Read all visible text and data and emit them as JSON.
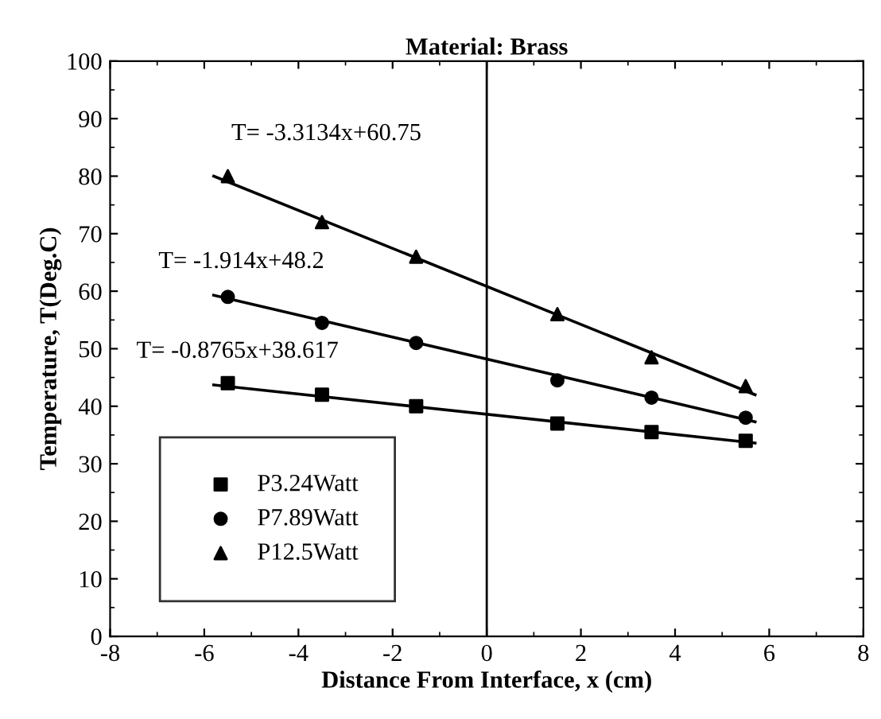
{
  "chart_data": {
    "type": "scatter",
    "title": "Material: Brass",
    "xlabel": "Distance From Interface, x (cm)",
    "ylabel": "Temperature, T(Deg.C)",
    "xlim": [
      -8,
      8
    ],
    "xticks": [
      -8,
      -6,
      -4,
      -2,
      0,
      2,
      4,
      6,
      8
    ],
    "ylim": [
      0,
      100
    ],
    "yticks": [
      0,
      10,
      20,
      30,
      40,
      50,
      60,
      70,
      80,
      90,
      100
    ],
    "grid": false,
    "legend": "bottom left",
    "series": [
      {
        "name": "P3.24Watt",
        "color": "#000000",
        "marker": "square",
        "x": [
          -5.5,
          -3.5,
          -1.5,
          1.5,
          3.5,
          5.5
        ],
        "values": [
          44,
          42,
          40,
          37,
          35.5,
          34
        ]
      },
      {
        "name": "P7.89Watt",
        "color": "#000000",
        "marker": "circle",
        "x": [
          -5.5,
          -3.5,
          -1.5,
          1.5,
          3.5,
          5.5
        ],
        "values": [
          59,
          54.5,
          51,
          44.5,
          41.5,
          38
        ]
      },
      {
        "name": "P12.5Watt",
        "color": "#000000",
        "marker": "triangle",
        "x": [
          -5.5,
          -3.5,
          -1.5,
          1.5,
          3.5,
          5.5
        ],
        "values": [
          80,
          72,
          66,
          56,
          48.5,
          43.5
        ]
      },
      {
        "type": "line",
        "color": "#000000",
        "marker": "none",
        "x": [
          -5.8,
          5.7
        ],
        "values": [
          43.7,
          33.6
        ]
      },
      {
        "type": "line",
        "color": "#000000",
        "marker": "none",
        "x": [
          -5.8,
          5.7
        ],
        "values": [
          59.3,
          37.3
        ]
      },
      {
        "type": "line",
        "color": "#000000",
        "marker": "none",
        "x": [
          -5.8,
          5.7
        ],
        "values": [
          80,
          42
        ]
      }
    ],
    "ref_lines": [
      {
        "axis": "x",
        "value": 0,
        "color": "#000000"
      }
    ],
    "annotations": [
      "T= -3.3134x+60.75",
      "T= -1.914x+48.2",
      "T= -0.8765x+38.617"
    ]
  }
}
